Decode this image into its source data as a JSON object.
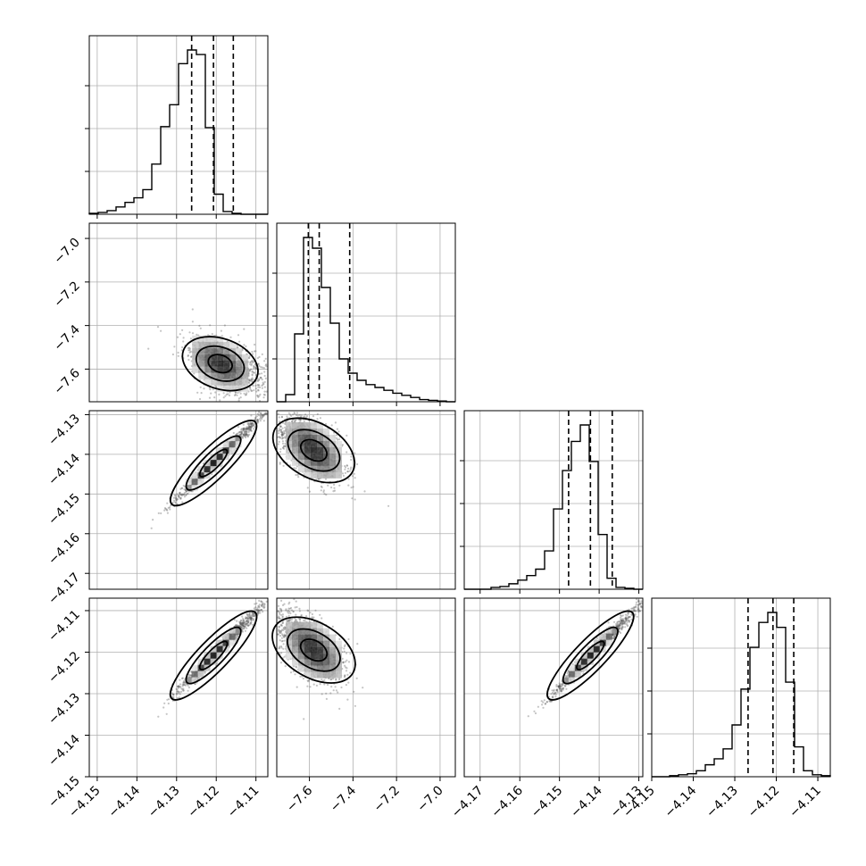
{
  "chart_data": {
    "type": "corner",
    "parameters": [
      {
        "index": 0,
        "range": [
          -4.152,
          -4.107
        ],
        "ticks": [
          -4.15,
          -4.14,
          -4.13,
          -4.12,
          -4.11
        ]
      },
      {
        "index": 1,
        "range": [
          -7.75,
          -6.93
        ],
        "ticks": [
          -7.6,
          -7.4,
          -7.2,
          -7.0
        ]
      },
      {
        "index": 2,
        "range": [
          -4.174,
          -4.129
        ],
        "ticks": [
          -4.17,
          -4.16,
          -4.15,
          -4.14,
          -4.13
        ]
      },
      {
        "index": 3,
        "range": [
          -4.15,
          -4.107
        ],
        "ticks": [
          -4.15,
          -4.14,
          -4.13,
          -4.12,
          -4.11
        ]
      }
    ],
    "y_axis_ticks": {
      "1": [
        -7.0,
        -7.2,
        -7.4,
        -7.6
      ],
      "2": [
        -4.13,
        -4.14,
        -4.15,
        -4.16,
        -4.17
      ],
      "3": [
        -4.11,
        -4.12,
        -4.13,
        -4.14,
        -4.15
      ]
    },
    "quantiles": [
      [
        -4.1262,
        -4.1207,
        -4.1157
      ],
      [
        -7.605,
        -7.555,
        -7.415
      ],
      [
        -4.1477,
        -4.1422,
        -4.1367
      ],
      [
        -4.1268,
        -4.1208,
        -4.1158
      ]
    ],
    "histograms": [
      {
        "edges_range": [
          -4.152,
          -4.107
        ],
        "bins": 20,
        "counts": [
          1,
          2,
          4,
          8,
          13,
          18,
          27,
          55,
          96,
          120,
          165,
          180,
          175,
          95,
          22,
          3,
          1,
          0,
          0,
          0
        ]
      },
      {
        "edges_range": [
          -7.75,
          -6.93
        ],
        "bins": 20,
        "counts": [
          0,
          10,
          95,
          230,
          215,
          160,
          110,
          60,
          40,
          30,
          24,
          20,
          16,
          12,
          9,
          6,
          3,
          2,
          1,
          0
        ]
      },
      {
        "edges_range": [
          -4.174,
          -4.129
        ],
        "bins": 20,
        "counts": [
          0,
          0,
          0,
          2,
          3,
          6,
          10,
          15,
          22,
          42,
          88,
          130,
          162,
          180,
          140,
          60,
          12,
          2,
          1,
          0
        ]
      },
      {
        "edges_range": [
          -4.15,
          -4.107
        ],
        "bins": 20,
        "counts": [
          0,
          0,
          1,
          2,
          3,
          6,
          12,
          18,
          28,
          52,
          88,
          130,
          155,
          165,
          150,
          95,
          30,
          6,
          2,
          1
        ]
      }
    ],
    "pairs": [
      {
        "x": 0,
        "y": 1,
        "center": [
          -4.119,
          -7.575
        ],
        "spread": [
          0.0045,
          0.065
        ],
        "corr": -0.45,
        "skew": [
          -1,
          1
        ]
      },
      {
        "x": 0,
        "y": 2,
        "center": [
          -4.1207,
          -4.1422
        ],
        "spread": [
          0.0052,
          0.0052
        ],
        "corr": 0.985,
        "skew": [
          -1,
          -1
        ]
      },
      {
        "x": 1,
        "y": 2,
        "center": [
          -7.58,
          -4.139
        ],
        "spread": [
          0.08,
          0.0045
        ],
        "corr": -0.55,
        "skew": [
          1,
          -1
        ]
      },
      {
        "x": 0,
        "y": 3,
        "center": [
          -4.1207,
          -4.1208
        ],
        "spread": [
          0.0052,
          0.0052
        ],
        "corr": 0.985,
        "skew": [
          -1,
          -1
        ]
      },
      {
        "x": 1,
        "y": 3,
        "center": [
          -7.58,
          -4.1195
        ],
        "spread": [
          0.08,
          0.0045
        ],
        "corr": -0.55,
        "skew": [
          1,
          -1
        ]
      },
      {
        "x": 2,
        "y": 3,
        "center": [
          -4.1422,
          -4.1208
        ],
        "spread": [
          0.0052,
          0.0052
        ],
        "corr": 0.985,
        "skew": [
          -1,
          -1
        ]
      }
    ],
    "grid": true,
    "contour_levels": 3
  }
}
